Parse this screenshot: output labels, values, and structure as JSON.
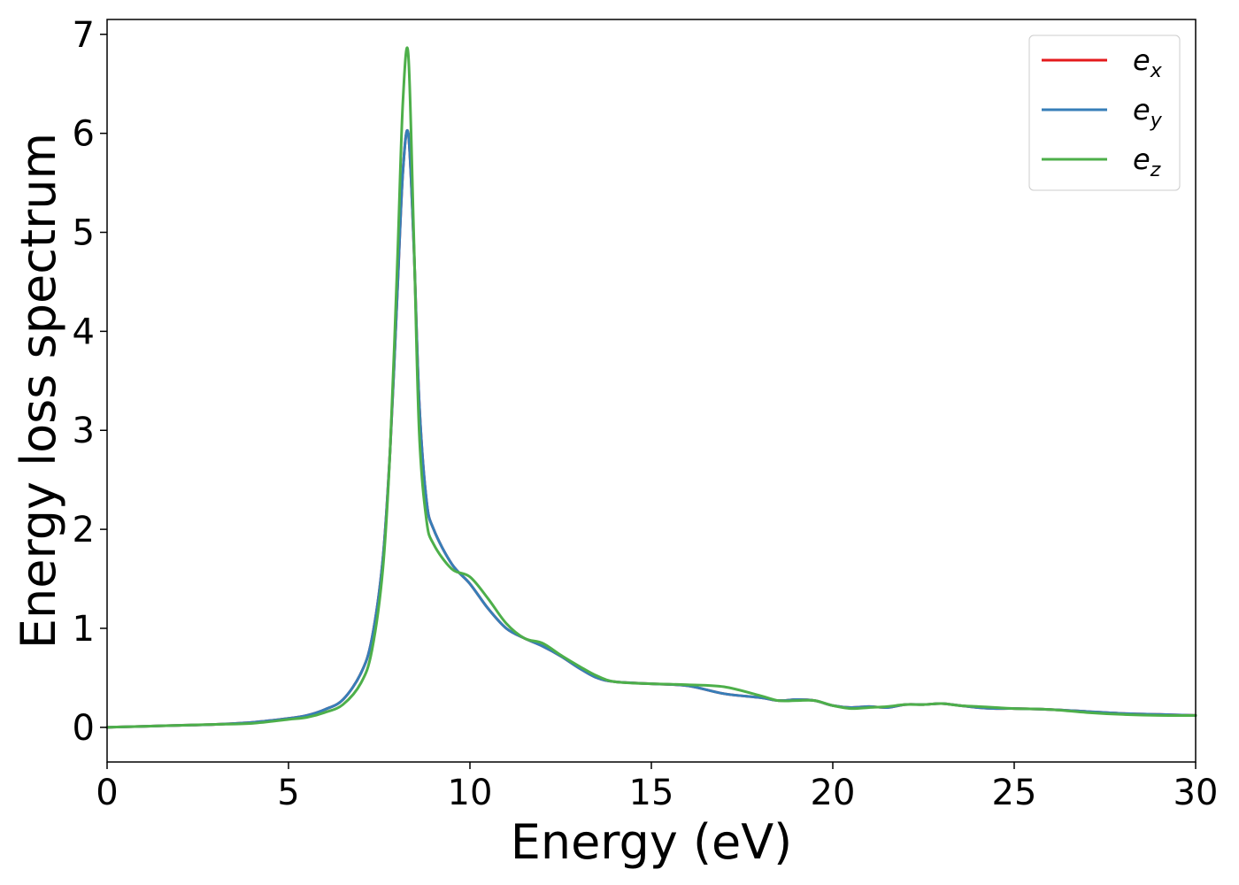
{
  "chart_data": {
    "type": "line",
    "xlabel": "Energy (eV)",
    "ylabel": "Energy loss spectrum",
    "xlim": [
      0,
      30
    ],
    "ylim": [
      -0.35,
      7.15
    ],
    "xticks": [
      0,
      5,
      10,
      15,
      20,
      25,
      30
    ],
    "yticks": [
      0,
      1,
      2,
      3,
      4,
      5,
      6,
      7
    ],
    "grid": false,
    "legend_position": "top-right",
    "series": [
      {
        "name": "e_x",
        "legend_base": "e",
        "legend_sub": "x",
        "color": "#e41a1c",
        "x": [
          0,
          1,
          2,
          3,
          4,
          5,
          5.5,
          6,
          6.5,
          7,
          7.3,
          7.6,
          7.8,
          8.0,
          8.15,
          8.3,
          8.45,
          8.6,
          8.8,
          9.0,
          9.5,
          10,
          10.5,
          11,
          11.5,
          12,
          12.5,
          13,
          13.5,
          14,
          15,
          16,
          17,
          18,
          18.5,
          19,
          19.5,
          20,
          20.5,
          21,
          21.5,
          22,
          22.5,
          23,
          23.5,
          24,
          24.5,
          25,
          26,
          27,
          28,
          29,
          30
        ],
        "y": [
          0.0,
          0.01,
          0.02,
          0.03,
          0.05,
          0.09,
          0.12,
          0.18,
          0.28,
          0.55,
          0.9,
          1.7,
          2.8,
          4.4,
          5.6,
          6.0,
          4.9,
          3.3,
          2.3,
          2.0,
          1.65,
          1.45,
          1.2,
          1.0,
          0.9,
          0.82,
          0.72,
          0.6,
          0.5,
          0.46,
          0.44,
          0.42,
          0.34,
          0.3,
          0.27,
          0.28,
          0.27,
          0.22,
          0.2,
          0.21,
          0.2,
          0.23,
          0.23,
          0.24,
          0.22,
          0.2,
          0.19,
          0.19,
          0.18,
          0.16,
          0.14,
          0.13,
          0.12
        ]
      },
      {
        "name": "e_y",
        "legend_base": "e",
        "legend_sub": "y",
        "color": "#377eb8",
        "x": [
          0,
          1,
          2,
          3,
          4,
          5,
          5.5,
          6,
          6.5,
          7,
          7.3,
          7.6,
          7.8,
          8.0,
          8.15,
          8.3,
          8.45,
          8.6,
          8.8,
          9.0,
          9.5,
          10,
          10.5,
          11,
          11.5,
          12,
          12.5,
          13,
          13.5,
          14,
          15,
          16,
          17,
          18,
          18.5,
          19,
          19.5,
          20,
          20.5,
          21,
          21.5,
          22,
          22.5,
          23,
          23.5,
          24,
          24.5,
          25,
          26,
          27,
          28,
          29,
          30
        ],
        "y": [
          0.0,
          0.01,
          0.02,
          0.03,
          0.05,
          0.09,
          0.12,
          0.18,
          0.28,
          0.55,
          0.9,
          1.7,
          2.8,
          4.4,
          5.6,
          6.0,
          4.9,
          3.3,
          2.3,
          2.0,
          1.65,
          1.45,
          1.2,
          1.0,
          0.9,
          0.82,
          0.72,
          0.6,
          0.5,
          0.46,
          0.44,
          0.42,
          0.34,
          0.3,
          0.27,
          0.28,
          0.27,
          0.22,
          0.2,
          0.21,
          0.2,
          0.23,
          0.23,
          0.24,
          0.22,
          0.2,
          0.19,
          0.19,
          0.18,
          0.16,
          0.14,
          0.13,
          0.12
        ]
      },
      {
        "name": "e_z",
        "legend_base": "e",
        "legend_sub": "z",
        "color": "#4daf4a",
        "x": [
          0,
          1,
          2,
          3,
          4,
          5,
          5.5,
          6,
          6.5,
          7,
          7.3,
          7.6,
          7.8,
          8.0,
          8.15,
          8.3,
          8.45,
          8.6,
          8.8,
          9.0,
          9.5,
          10,
          10.5,
          11,
          11.5,
          12,
          12.5,
          13,
          13.5,
          14,
          15,
          16,
          17,
          18,
          18.5,
          19,
          19.5,
          20,
          20.5,
          21,
          21.5,
          22,
          22.5,
          23,
          23.5,
          24,
          24.5,
          25,
          26,
          27,
          28,
          29,
          30
        ],
        "y": [
          0.0,
          0.01,
          0.02,
          0.03,
          0.04,
          0.08,
          0.1,
          0.15,
          0.23,
          0.45,
          0.78,
          1.6,
          2.8,
          4.7,
          6.3,
          6.8,
          5.0,
          3.0,
          2.1,
          1.85,
          1.6,
          1.52,
          1.3,
          1.05,
          0.9,
          0.85,
          0.73,
          0.62,
          0.52,
          0.46,
          0.44,
          0.43,
          0.41,
          0.32,
          0.27,
          0.27,
          0.27,
          0.22,
          0.19,
          0.2,
          0.21,
          0.23,
          0.23,
          0.24,
          0.22,
          0.21,
          0.2,
          0.19,
          0.18,
          0.15,
          0.13,
          0.12,
          0.12
        ]
      }
    ]
  }
}
